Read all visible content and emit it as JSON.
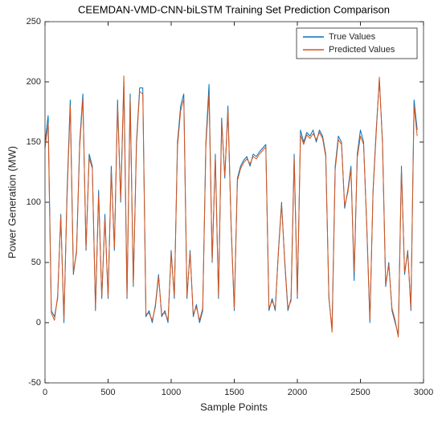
{
  "chart_data": {
    "type": "line",
    "title": "CEEMDAN-VMD-CNN-biLSTM Training Set Prediction Comparison",
    "xlabel": "Sample Points",
    "ylabel": "Power Generation (MW)",
    "xlim": [
      0,
      3000
    ],
    "xticks": [
      0,
      500,
      1000,
      1500,
      2000,
      2500,
      3000
    ],
    "ylim": [
      -50,
      250
    ],
    "yticks": [
      -50,
      0,
      50,
      100,
      150,
      200,
      250
    ],
    "legend": "northeast",
    "x": [
      0,
      25,
      50,
      75,
      100,
      125,
      150,
      175,
      200,
      225,
      250,
      275,
      300,
      325,
      350,
      375,
      400,
      425,
      450,
      475,
      500,
      525,
      550,
      575,
      600,
      625,
      650,
      675,
      700,
      725,
      750,
      775,
      800,
      825,
      850,
      875,
      900,
      925,
      950,
      975,
      1000,
      1025,
      1050,
      1075,
      1100,
      1125,
      1150,
      1175,
      1200,
      1225,
      1250,
      1275,
      1300,
      1325,
      1350,
      1375,
      1400,
      1425,
      1450,
      1475,
      1500,
      1525,
      1550,
      1575,
      1600,
      1625,
      1650,
      1675,
      1700,
      1725,
      1750,
      1775,
      1800,
      1825,
      1850,
      1875,
      1900,
      1925,
      1950,
      1975,
      2000,
      2025,
      2050,
      2075,
      2100,
      2125,
      2150,
      2175,
      2200,
      2225,
      2250,
      2275,
      2300,
      2325,
      2350,
      2375,
      2400,
      2425,
      2450,
      2475,
      2500,
      2525,
      2550,
      2575,
      2600,
      2625,
      2650,
      2675,
      2700,
      2725,
      2750,
      2775,
      2800,
      2825,
      2850,
      2875,
      2900,
      2925,
      2950
    ],
    "series": [
      {
        "name": "True Values",
        "color": "#0072BD",
        "values": [
          150,
          172,
          10,
          5,
          20,
          90,
          0,
          110,
          185,
          40,
          60,
          150,
          190,
          60,
          140,
          130,
          10,
          110,
          20,
          90,
          20,
          130,
          60,
          185,
          100,
          200,
          20,
          190,
          30,
          150,
          195,
          195,
          5,
          10,
          0,
          15,
          40,
          5,
          10,
          0,
          60,
          20,
          150,
          180,
          190,
          20,
          60,
          5,
          15,
          0,
          10,
          150,
          198,
          50,
          140,
          20,
          170,
          120,
          180,
          80,
          10,
          120,
          130,
          135,
          138,
          130,
          140,
          138,
          142,
          145,
          148,
          10,
          20,
          10,
          60,
          100,
          50,
          10,
          20,
          140,
          20,
          160,
          150,
          158,
          155,
          160,
          150,
          160,
          155,
          140,
          20,
          -5,
          130,
          155,
          150,
          95,
          110,
          130,
          35,
          140,
          160,
          150,
          80,
          0,
          110,
          160,
          202,
          150,
          30,
          50,
          10,
          0,
          -10,
          130,
          40,
          60,
          10,
          185,
          160
        ]
      },
      {
        "name": "Predicted Values",
        "color": "#D95319",
        "values": [
          145,
          165,
          8,
          2,
          22,
          88,
          3,
          105,
          180,
          42,
          58,
          146,
          186,
          62,
          137,
          128,
          12,
          106,
          22,
          86,
          22,
          126,
          62,
          180,
          102,
          205,
          22,
          186,
          32,
          147,
          192,
          190,
          7,
          8,
          2,
          13,
          38,
          7,
          8,
          2,
          57,
          22,
          146,
          176,
          186,
          22,
          58,
          7,
          13,
          2,
          12,
          146,
          190,
          52,
          137,
          22,
          166,
          122,
          176,
          82,
          12,
          118,
          128,
          133,
          136,
          132,
          138,
          136,
          140,
          143,
          146,
          12,
          18,
          12,
          58,
          98,
          52,
          12,
          18,
          137,
          22,
          156,
          148,
          156,
          153,
          157,
          152,
          158,
          153,
          138,
          22,
          -8,
          127,
          152,
          148,
          97,
          108,
          127,
          42,
          137,
          155,
          148,
          82,
          3,
          108,
          157,
          204,
          148,
          32,
          48,
          12,
          2,
          -12,
          127,
          42,
          58,
          12,
          180,
          155
        ]
      }
    ]
  }
}
